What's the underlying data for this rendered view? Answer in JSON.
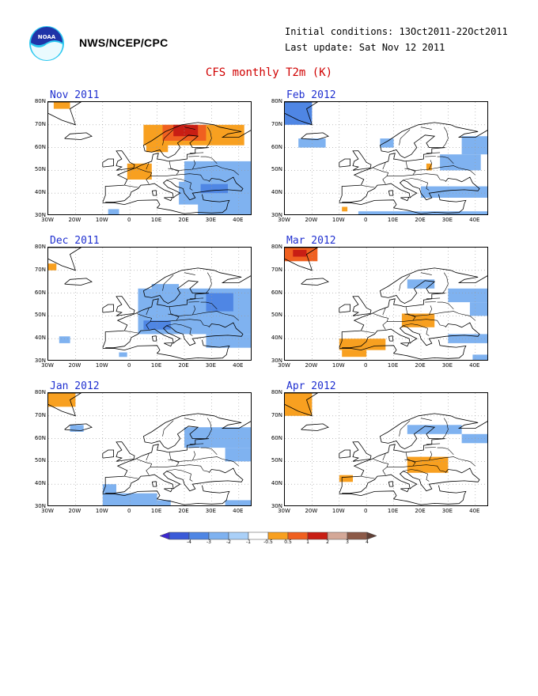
{
  "header": {
    "org": "NWS/NCEP/CPC",
    "initial_conditions": "Initial conditions: 13Oct2011-22Oct2011",
    "last_update": "Last update: Sat Nov 12 2011",
    "title": "CFS monthly T2m (K)",
    "logo_text": "NOAA",
    "logo_icon": "noaa-logo-icon"
  },
  "axes": {
    "lon_labels": [
      "30W",
      "20W",
      "10W",
      "0",
      "10E",
      "20E",
      "30E",
      "40E"
    ],
    "lat_labels": [
      "80N",
      "70N",
      "60N",
      "50N",
      "40N",
      "30N"
    ]
  },
  "colorbar": {
    "labels": [
      "-4",
      "-3",
      "-2",
      "-1",
      "-0.5",
      "0.5",
      "1",
      "2",
      "3",
      "4"
    ],
    "colors": [
      "#3c28d0",
      "#3a5ad8",
      "#4f86e4",
      "#7fb2f0",
      "#aad0f8",
      "#ffffff",
      "#f8a020",
      "#f06020",
      "#c81e14",
      "#d4a898",
      "#8c5a48",
      "#604036"
    ]
  },
  "panels": [
    {
      "title": "Nov 2011",
      "anomalies": [
        {
          "level": "w1",
          "lon": [
            -28,
            -22
          ],
          "lat": [
            77,
            80
          ]
        },
        {
          "level": "w1",
          "lon": [
            5,
            42
          ],
          "lat": [
            61,
            70
          ]
        },
        {
          "level": "w1",
          "lon": [
            6,
            14
          ],
          "lat": [
            58,
            62
          ]
        },
        {
          "level": "w2",
          "lon": [
            12,
            28
          ],
          "lat": [
            63,
            70
          ]
        },
        {
          "level": "w3",
          "lon": [
            16,
            25
          ],
          "lat": [
            65,
            70
          ]
        },
        {
          "level": "w1",
          "lon": [
            -1,
            8
          ],
          "lat": [
            46,
            53
          ]
        },
        {
          "level": "c1",
          "lon": [
            20,
            45
          ],
          "lat": [
            44,
            54
          ]
        },
        {
          "level": "c1",
          "lon": [
            18,
            45
          ],
          "lat": [
            35,
            45
          ]
        },
        {
          "level": "c1",
          "lon": [
            25,
            45
          ],
          "lat": [
            30,
            36
          ]
        },
        {
          "level": "c2",
          "lon": [
            26,
            36
          ],
          "lat": [
            40,
            44
          ]
        },
        {
          "level": "c1",
          "lon": [
            -8,
            -4
          ],
          "lat": [
            30,
            33
          ]
        }
      ]
    },
    {
      "title": "Feb 2012",
      "anomalies": [
        {
          "level": "c2",
          "lon": [
            -30,
            -20
          ],
          "lat": [
            70,
            80
          ]
        },
        {
          "level": "c1",
          "lon": [
            -25,
            -15
          ],
          "lat": [
            60,
            64
          ]
        },
        {
          "level": "c1",
          "lon": [
            35,
            45
          ],
          "lat": [
            57,
            65
          ]
        },
        {
          "level": "c1",
          "lon": [
            27,
            42
          ],
          "lat": [
            50,
            57
          ]
        },
        {
          "level": "c1",
          "lon": [
            20,
            45
          ],
          "lat": [
            38,
            43
          ]
        },
        {
          "level": "c1",
          "lon": [
            -3,
            45
          ],
          "lat": [
            30,
            32
          ]
        },
        {
          "level": "c1",
          "lon": [
            5,
            10
          ],
          "lat": [
            60,
            64
          ]
        },
        {
          "level": "w1",
          "lon": [
            22,
            24
          ],
          "lat": [
            50,
            53
          ]
        },
        {
          "level": "w1",
          "lon": [
            -9,
            -7
          ],
          "lat": [
            32,
            34
          ]
        }
      ]
    },
    {
      "title": "Dec 2011",
      "anomalies": [
        {
          "level": "w1",
          "lon": [
            -30,
            -27
          ],
          "lat": [
            70,
            73
          ]
        },
        {
          "level": "c1",
          "lon": [
            3,
            45
          ],
          "lat": [
            42,
            62
          ]
        },
        {
          "level": "c1",
          "lon": [
            8,
            18
          ],
          "lat": [
            60,
            64
          ]
        },
        {
          "level": "c2",
          "lon": [
            28,
            38
          ],
          "lat": [
            52,
            60
          ]
        },
        {
          "level": "c2",
          "lon": [
            5,
            15
          ],
          "lat": [
            44,
            48
          ]
        },
        {
          "level": "c1",
          "lon": [
            28,
            45
          ],
          "lat": [
            36,
            42
          ]
        },
        {
          "level": "c1",
          "lon": [
            -4,
            -1
          ],
          "lat": [
            32,
            34
          ]
        },
        {
          "level": "c1",
          "lon": [
            -26,
            -22
          ],
          "lat": [
            38,
            41
          ]
        }
      ]
    },
    {
      "title": "Mar 2012",
      "anomalies": [
        {
          "level": "w2",
          "lon": [
            -30,
            -18
          ],
          "lat": [
            74,
            80
          ]
        },
        {
          "level": "w3",
          "lon": [
            -27,
            -22
          ],
          "lat": [
            76,
            79
          ]
        },
        {
          "level": "c1",
          "lon": [
            15,
            25
          ],
          "lat": [
            62,
            66
          ]
        },
        {
          "level": "c1",
          "lon": [
            30,
            45
          ],
          "lat": [
            56,
            62
          ]
        },
        {
          "level": "c1",
          "lon": [
            38,
            45
          ],
          "lat": [
            50,
            56
          ]
        },
        {
          "level": "w1",
          "lon": [
            13,
            25
          ],
          "lat": [
            45,
            51
          ]
        },
        {
          "level": "w1",
          "lon": [
            -10,
            7
          ],
          "lat": [
            35,
            40
          ]
        },
        {
          "level": "w1",
          "lon": [
            -9,
            0
          ],
          "lat": [
            32,
            35
          ]
        },
        {
          "level": "c1",
          "lon": [
            30,
            45
          ],
          "lat": [
            38,
            42
          ]
        },
        {
          "level": "c1",
          "lon": [
            39,
            45
          ],
          "lat": [
            30,
            33
          ]
        }
      ]
    },
    {
      "title": "Jan 2012",
      "anomalies": [
        {
          "level": "w1",
          "lon": [
            -30,
            -20
          ],
          "lat": [
            74,
            80
          ]
        },
        {
          "level": "c1",
          "lon": [
            -22,
            -17
          ],
          "lat": [
            63,
            66
          ]
        },
        {
          "level": "c1",
          "lon": [
            20,
            45
          ],
          "lat": [
            56,
            65
          ]
        },
        {
          "level": "c1",
          "lon": [
            35,
            45
          ],
          "lat": [
            50,
            56
          ]
        },
        {
          "level": "c1",
          "lon": [
            -10,
            -5
          ],
          "lat": [
            36,
            40
          ]
        },
        {
          "level": "c1",
          "lon": [
            -10,
            10
          ],
          "lat": [
            30,
            36
          ]
        },
        {
          "level": "c1",
          "lon": [
            10,
            15
          ],
          "lat": [
            30,
            33
          ]
        },
        {
          "level": "c1",
          "lon": [
            35,
            45
          ],
          "lat": [
            30,
            33
          ]
        }
      ]
    },
    {
      "title": "Apr 2012",
      "anomalies": [
        {
          "level": "w1",
          "lon": [
            -30,
            -20
          ],
          "lat": [
            70,
            80
          ]
        },
        {
          "level": "c1",
          "lon": [
            15,
            35
          ],
          "lat": [
            62,
            66
          ]
        },
        {
          "level": "c1",
          "lon": [
            35,
            45
          ],
          "lat": [
            58,
            62
          ]
        },
        {
          "level": "w1",
          "lon": [
            15,
            30
          ],
          "lat": [
            45,
            52
          ]
        },
        {
          "level": "w1",
          "lon": [
            -10,
            -5
          ],
          "lat": [
            41,
            44
          ]
        }
      ]
    }
  ]
}
